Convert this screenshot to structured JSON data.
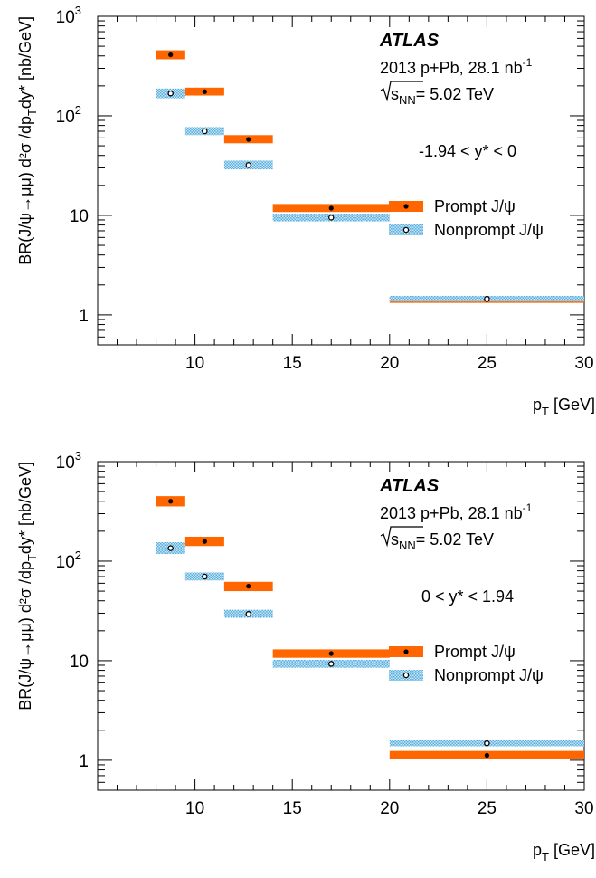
{
  "colors": {
    "prompt": "#ff6600",
    "nonprompt": "#5aaede",
    "nonprompt_hatch": "#c7e6f5",
    "marker": "#000000",
    "axis": "#000000"
  },
  "chart_data": [
    {
      "type": "scatter",
      "experiment_label": "ATLAS",
      "dataset_label": "2013 p+Pb, 28.1 nb",
      "dataset_label_sup": "-1",
      "energy_label_pre": "s",
      "energy_label_sub": "NN",
      "energy_label_post": "= 5.02 TeV",
      "rapidity_label": "-1.94 <  y* < 0",
      "ylabel": "BR(J/ψ→μμ) d²σ /dp",
      "ylabel_sub": "T",
      "ylabel_post": "dy* [nb/GeV]",
      "xlabel": "p",
      "xlabel_sub": "T",
      "xlabel_post": " [GeV]",
      "xlim": [
        5,
        30
      ],
      "ylim": [
        0.5,
        1000
      ],
      "yscale": "log",
      "x_ticks": [
        "10",
        "15",
        "20",
        "25",
        "30"
      ],
      "y_ticks": [
        "1",
        "10",
        "10",
        "10"
      ],
      "y_tick_exps": [
        "",
        "",
        "2",
        "3"
      ],
      "legend_placement": "right",
      "series": [
        {
          "name": "Prompt J/ψ",
          "marker": "filled",
          "points": [
            {
              "x": 8.75,
              "xlo": 8,
              "xhi": 9.5,
              "y": 410,
              "ylo": 370,
              "yhi": 455
            },
            {
              "x": 10.5,
              "xlo": 9.5,
              "xhi": 11.5,
              "y": 175,
              "ylo": 160,
              "yhi": 192
            },
            {
              "x": 12.75,
              "xlo": 11.5,
              "xhi": 14,
              "y": 58,
              "ylo": 53,
              "yhi": 64
            },
            {
              "x": 17,
              "xlo": 14,
              "xhi": 20,
              "y": 11.8,
              "ylo": 10.8,
              "yhi": 13
            },
            {
              "x": 25,
              "xlo": 20,
              "xhi": 30,
              "y": 1.42,
              "ylo": 1.32,
              "yhi": 1.52
            }
          ]
        },
        {
          "name": "Nonprompt J/ψ",
          "marker": "open",
          "points": [
            {
              "x": 8.75,
              "xlo": 8,
              "xhi": 9.5,
              "y": 168,
              "ylo": 150,
              "yhi": 188
            },
            {
              "x": 10.5,
              "xlo": 9.5,
              "xhi": 11.5,
              "y": 70,
              "ylo": 64,
              "yhi": 77
            },
            {
              "x": 12.75,
              "xlo": 11.5,
              "xhi": 14,
              "y": 32,
              "ylo": 29,
              "yhi": 35.5
            },
            {
              "x": 17,
              "xlo": 14,
              "xhi": 20,
              "y": 9.5,
              "ylo": 8.7,
              "yhi": 10.4
            },
            {
              "x": 25,
              "xlo": 20,
              "xhi": 30,
              "y": 1.45,
              "ylo": 1.36,
              "yhi": 1.55
            }
          ]
        }
      ]
    },
    {
      "type": "scatter",
      "experiment_label": "ATLAS",
      "dataset_label": "2013 p+Pb, 28.1 nb",
      "dataset_label_sup": "-1",
      "energy_label_pre": "s",
      "energy_label_sub": "NN",
      "energy_label_post": "= 5.02 TeV",
      "rapidity_label": "0 <  y* < 1.94",
      "ylabel": "BR(J/ψ→μμ) d²σ /dp",
      "ylabel_sub": "T",
      "ylabel_post": "dy* [nb/GeV]",
      "xlabel": "p",
      "xlabel_sub": "T",
      "xlabel_post": " [GeV]",
      "xlim": [
        5,
        30
      ],
      "ylim": [
        0.5,
        1000
      ],
      "yscale": "log",
      "x_ticks": [
        "10",
        "15",
        "20",
        "25",
        "30"
      ],
      "y_ticks": [
        "1",
        "10",
        "10",
        "10"
      ],
      "y_tick_exps": [
        "",
        "",
        "2",
        "3"
      ],
      "legend_placement": "right",
      "series": [
        {
          "name": "Prompt J/ψ",
          "marker": "filled",
          "points": [
            {
              "x": 8.75,
              "xlo": 8,
              "xhi": 9.5,
              "y": 400,
              "ylo": 355,
              "yhi": 450
            },
            {
              "x": 10.5,
              "xlo": 9.5,
              "xhi": 11.5,
              "y": 158,
              "ylo": 142,
              "yhi": 176
            },
            {
              "x": 12.75,
              "xlo": 11.5,
              "xhi": 14,
              "y": 56,
              "ylo": 50,
              "yhi": 62
            },
            {
              "x": 17,
              "xlo": 14,
              "xhi": 20,
              "y": 11.8,
              "ylo": 10.7,
              "yhi": 13
            },
            {
              "x": 25,
              "xlo": 20,
              "xhi": 30,
              "y": 1.12,
              "ylo": 1.02,
              "yhi": 1.24
            }
          ]
        },
        {
          "name": "Nonprompt J/ψ",
          "marker": "open",
          "points": [
            {
              "x": 8.75,
              "xlo": 8,
              "xhi": 9.5,
              "y": 135,
              "ylo": 118,
              "yhi": 155
            },
            {
              "x": 10.5,
              "xlo": 9.5,
              "xhi": 11.5,
              "y": 70,
              "ylo": 64,
              "yhi": 77
            },
            {
              "x": 12.75,
              "xlo": 11.5,
              "xhi": 14,
              "y": 29.5,
              "ylo": 27,
              "yhi": 32.5
            },
            {
              "x": 17,
              "xlo": 14,
              "xhi": 20,
              "y": 9.3,
              "ylo": 8.5,
              "yhi": 10.2
            },
            {
              "x": 25,
              "xlo": 20,
              "xhi": 30,
              "y": 1.48,
              "ylo": 1.38,
              "yhi": 1.6
            }
          ]
        }
      ]
    }
  ]
}
